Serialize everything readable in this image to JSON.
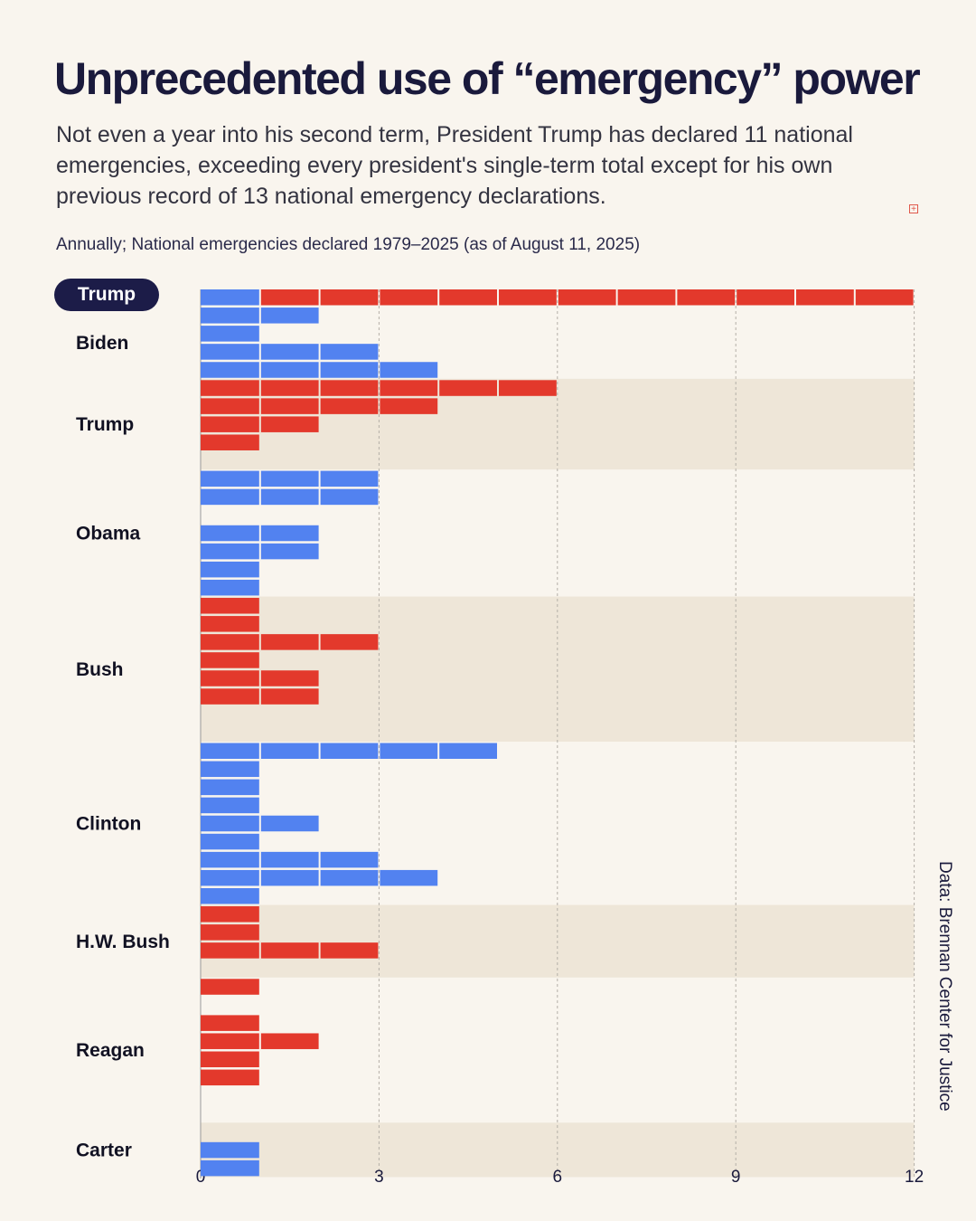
{
  "title": "Unprecedented use of “emergency” power",
  "subtitle": "Not even a year into his second term, President Trump has declared 11 national emergencies, exceeding every president's single-term total except for his own previous record of 13 national emergency declarations.",
  "note": "Annually; National emergencies declared 1979–2025 (as of August 11, 2025)",
  "source": "Data: Brennan Center for Justice",
  "colors": {
    "blue": "#5282f0",
    "red": "#e3392c",
    "band": "#eee6d8",
    "badge": "#1c1c48"
  },
  "chart_data": {
    "type": "bar",
    "orientation": "horizontal",
    "xlim": [
      0,
      12
    ],
    "x_ticks": [
      "0",
      "3",
      "6",
      "9",
      "12"
    ],
    "grid": "vertical dashed",
    "rows": [
      {
        "group": "Trump",
        "values": [
          1,
          11
        ]
      },
      {
        "group": "Biden",
        "values": [
          2
        ]
      },
      {
        "group": "Biden",
        "values": [
          1
        ]
      },
      {
        "group": "Biden",
        "values": [
          3
        ]
      },
      {
        "group": "Biden",
        "values": [
          4
        ]
      },
      {
        "group": "Trump",
        "values": [
          6
        ]
      },
      {
        "group": "Trump",
        "values": [
          4
        ]
      },
      {
        "group": "Trump",
        "values": [
          2
        ]
      },
      {
        "group": "Trump",
        "values": [
          1
        ]
      },
      {
        "group": "Trump",
        "values": [
          0
        ]
      },
      {
        "group": "Obama",
        "values": [
          3
        ]
      },
      {
        "group": "Obama",
        "values": [
          3
        ]
      },
      {
        "group": "Obama",
        "values": [
          0
        ]
      },
      {
        "group": "Obama",
        "values": [
          2
        ]
      },
      {
        "group": "Obama",
        "values": [
          2
        ]
      },
      {
        "group": "Obama",
        "values": [
          1
        ]
      },
      {
        "group": "Obama",
        "values": [
          1
        ]
      },
      {
        "group": "Bush",
        "values": [
          1
        ]
      },
      {
        "group": "Bush",
        "values": [
          1
        ]
      },
      {
        "group": "Bush",
        "values": [
          3
        ]
      },
      {
        "group": "Bush",
        "values": [
          1
        ]
      },
      {
        "group": "Bush",
        "values": [
          2
        ]
      },
      {
        "group": "Bush",
        "values": [
          2
        ]
      },
      {
        "group": "Bush",
        "values": [
          0
        ]
      },
      {
        "group": "Bush",
        "values": [
          0,
          0
        ]
      },
      {
        "group": "Clinton",
        "values": [
          1,
          4
        ]
      },
      {
        "group": "Clinton",
        "values": [
          1
        ]
      },
      {
        "group": "Clinton",
        "values": [
          1
        ]
      },
      {
        "group": "Clinton",
        "values": [
          1
        ]
      },
      {
        "group": "Clinton",
        "values": [
          2
        ]
      },
      {
        "group": "Clinton",
        "values": [
          1
        ]
      },
      {
        "group": "Clinton",
        "values": [
          3
        ]
      },
      {
        "group": "Clinton",
        "values": [
          4
        ]
      },
      {
        "group": "Clinton",
        "values": [
          1
        ]
      },
      {
        "group": "H.W. Bush",
        "values": [
          1
        ]
      },
      {
        "group": "H.W. Bush",
        "values": [
          1
        ]
      },
      {
        "group": "H.W. Bush",
        "values": [
          3
        ]
      },
      {
        "group": "H.W. Bush",
        "values": [
          0
        ]
      },
      {
        "group": "Reagan",
        "values": [
          1
        ]
      },
      {
        "group": "Reagan",
        "values": [
          0
        ]
      },
      {
        "group": "Reagan",
        "values": [
          1
        ]
      },
      {
        "group": "Reagan",
        "values": [
          2
        ]
      },
      {
        "group": "Reagan",
        "values": [
          1
        ]
      },
      {
        "group": "Reagan",
        "values": [
          1
        ]
      },
      {
        "group": "Reagan",
        "values": [
          0
        ]
      },
      {
        "group": "Reagan",
        "values": [
          0
        ]
      },
      {
        "group": "Carter",
        "values": [
          0
        ]
      },
      {
        "group": "Carter",
        "values": [
          1
        ]
      },
      {
        "group": "Carter",
        "values": [
          1
        ]
      }
    ],
    "presidents": [
      {
        "label": "Trump",
        "party": "red",
        "badge": true,
        "band": false
      },
      {
        "label": "Biden",
        "party": "blue",
        "badge": false,
        "band": false
      },
      {
        "label": "Trump",
        "party": "red",
        "badge": false,
        "band": true
      },
      {
        "label": "Obama",
        "party": "blue",
        "badge": false,
        "band": false
      },
      {
        "label": "Bush",
        "party": "red",
        "badge": false,
        "band": true
      },
      {
        "label": "Clinton",
        "party": "blue",
        "badge": false,
        "band": false
      },
      {
        "label": "H.W. Bush",
        "party": "red",
        "badge": false,
        "band": true
      },
      {
        "label": "Reagan",
        "party": "red",
        "badge": false,
        "band": false
      },
      {
        "label": "Carter",
        "party": "blue",
        "badge": false,
        "band": true
      }
    ]
  }
}
